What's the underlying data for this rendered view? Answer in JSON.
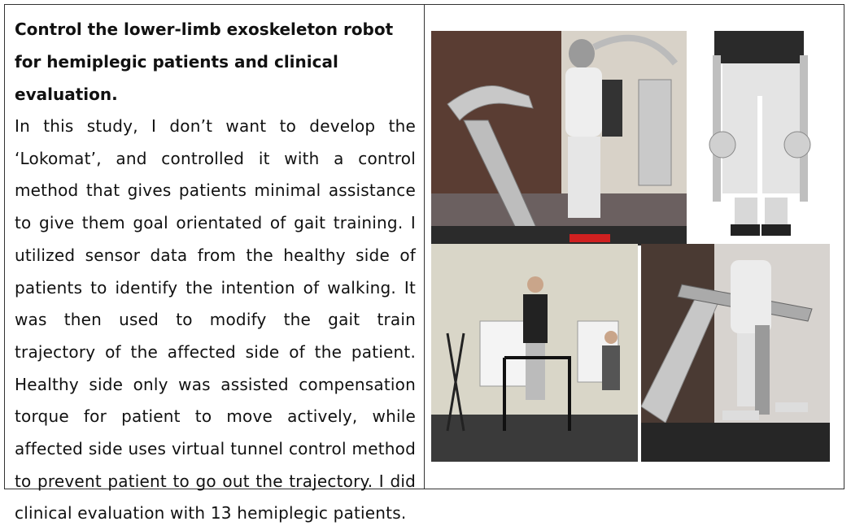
{
  "title": "Control the lower-limb exoskeleton robot for hemiplegic patients and clinical evaluation.",
  "body": "In this study, I don’t want to develop the ‘Lokomat’, and controlled it with a control method that gives patients minimal assistance to give them goal orientated of gait training. I utilized sensor data from the healthy side of patients to identify the intention of walking. It was then used to modify the gait train trajectory of the affected side of the patient. Healthy side only was assisted compensation torque for patient to move actively, while affected side uses virtual tunnel control method to prevent patient to go out the trajectory. I did clinical evaluation with 13 hemiplegic patients.",
  "photos": [
    {
      "icon": "treadmill-exoskeleton-photo"
    },
    {
      "icon": "wearable-exoskeleton-legs-photo"
    },
    {
      "icon": "lab-walking-trial-photo"
    },
    {
      "icon": "treadmill-closeup-photo"
    }
  ]
}
